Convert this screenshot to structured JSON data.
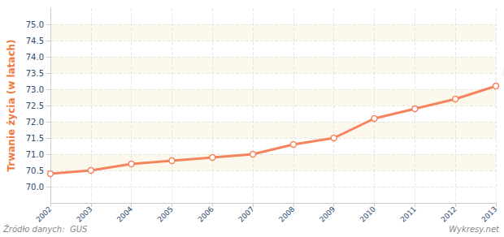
{
  "chart_data": {
    "type": "line",
    "y_label": "Trwanie życia (w latach)",
    "categories": [
      "2002",
      "2003",
      "2004",
      "2005",
      "2006",
      "2007",
      "2008",
      "2009",
      "2010",
      "2011",
      "2012",
      "2013"
    ],
    "values": [
      70.4,
      70.5,
      70.7,
      70.8,
      70.9,
      71.0,
      71.3,
      71.5,
      72.1,
      72.4,
      72.7,
      73.1
    ],
    "color": "#f4845f",
    "marker": "circle",
    "ylim": [
      69.5,
      75.5
    ],
    "yticks": [
      {
        "value": 70,
        "label": "70.0"
      },
      70.5,
      {
        "value": 71,
        "label": "71.0"
      },
      71.5,
      {
        "value": 72,
        "label": "72.0"
      },
      72.5,
      {
        "value": 73,
        "label": "73.0"
      },
      73.5,
      {
        "value": 74,
        "label": "74.0"
      },
      74.5,
      {
        "value": 75,
        "label": "75.0"
      }
    ],
    "grid": true,
    "annotations": [
      "Źródło danych:  GUS",
      "Wykresy.net",
      "wykresy.net"
    ]
  }
}
